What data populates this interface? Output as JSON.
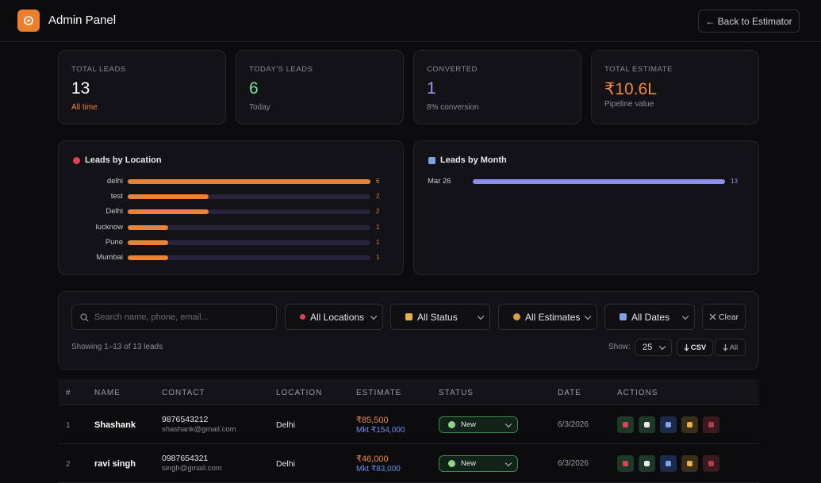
{
  "header": {
    "title": "Admin Panel",
    "back_button": "← Back to Estimator"
  },
  "stats": [
    {
      "label": "TOTAL LEADS",
      "value": 13,
      "sub": "All time"
    },
    {
      "label": "TODAY'S LEADS",
      "value": 6,
      "sub": "Today"
    },
    {
      "label": "CONVERTED",
      "value": 1,
      "sub": "8% conversion"
    },
    {
      "label": "TOTAL ESTIMATE",
      "value": "₹10.6L",
      "sub": "Pipeline value"
    }
  ],
  "location_chart": {
    "title": "Leads by Location",
    "categories": [
      "delhi",
      "test",
      "Delhi",
      "lucknow",
      "Pune",
      "Mumbai"
    ],
    "values": [
      6,
      2,
      2,
      1,
      1,
      1
    ],
    "color": "#e8833a"
  },
  "month_chart": {
    "title": "Leads by Month",
    "categories": [
      "Mar 26"
    ],
    "values": [
      13
    ],
    "color": "#8b8ff0"
  },
  "filters": {
    "search_placeholder": "Search name, phone, email...",
    "locations": "All Locations",
    "status": "All Status",
    "estimates": "All Estimates",
    "dates": "All Dates",
    "clear": "Clear",
    "showing": "Showing 1–13 of 13 leads",
    "show_label": "Show:",
    "page_size": "25",
    "csv": "CSV",
    "all": "All"
  },
  "table": {
    "columns": [
      "#",
      "NAME",
      "CONTACT",
      "LOCATION",
      "ESTIMATE",
      "STATUS",
      "DATE",
      "ACTIONS"
    ],
    "rows": [
      {
        "index": "1",
        "name": "Shashank",
        "phone": "9876543212",
        "email": "shashank@gmail.com",
        "location": "Delhi",
        "estimate": "₹85,500",
        "market": "Mkt ₹154,000",
        "status": "New",
        "date": "6/3/2026"
      },
      {
        "index": "2",
        "name": "ravi singh",
        "phone": "0987654321",
        "email": "singh@gmail.com",
        "location": "Delhi",
        "estimate": "₹46,000",
        "market": "Mkt ₹83,000",
        "status": "New",
        "date": "6/3/2026"
      }
    ]
  }
}
